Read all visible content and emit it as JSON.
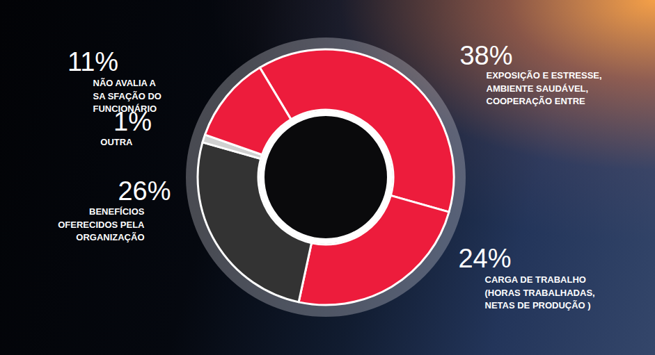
{
  "chart_data": {
    "type": "donut",
    "categories": [
      "EXPOSIÇÃO E ESTRESSE, AMBIENTE SAUDÁVEL, COOPERAÇÃO ENTRE",
      "CARGA DE TRABALHO (HORAS TRABALHADAS, NETAS DE PRODUÇÃO )",
      "BENEFÍCIOS OFERECIDOS PELA ORGANIZAÇÃO",
      "OUTRA",
      "NÃO AVALIA A SA SFAÇÃO DO FUNCIONÁRIO"
    ],
    "values": [
      38,
      24,
      26,
      1,
      11
    ],
    "value_labels": [
      "38%",
      "24%",
      "26%",
      "1%",
      "11%"
    ],
    "colors": [
      "#ed1c3c",
      "#ed1c3c",
      "#333333",
      "#d0d0d0",
      "#ed1c3c"
    ],
    "data_labels": true
  }
}
